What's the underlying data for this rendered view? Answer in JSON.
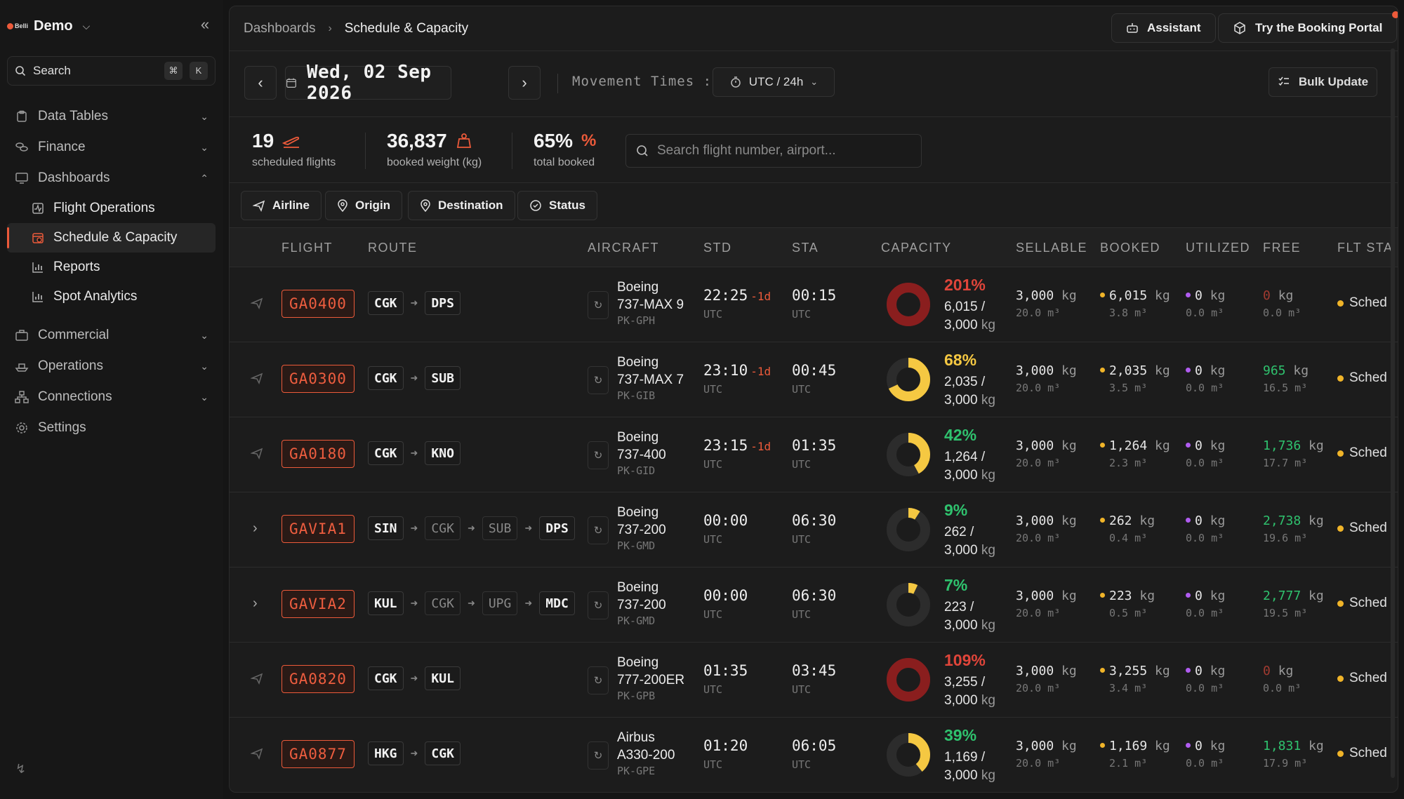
{
  "colors": {
    "accent": "#ec5a3a",
    "over": "#8a1e1e",
    "warn": "#f5c842",
    "ok": "#2fc26e",
    "grey": "#2c2c2c",
    "booked_dot": "#f0b429",
    "util_dot": "#b05cf0"
  },
  "sidebar": {
    "brand_logo": "Belli",
    "workspace": "Demo",
    "search_label": "Search",
    "kbd1": "⌘",
    "kbd2": "K",
    "items": [
      {
        "label": "Data Tables",
        "icon": "clipboard-icon"
      },
      {
        "label": "Finance",
        "icon": "coins-icon"
      },
      {
        "label": "Dashboards",
        "icon": "monitor-icon"
      },
      {
        "label": "Commercial",
        "icon": "briefcase-icon"
      },
      {
        "label": "Operations",
        "icon": "ship-icon"
      },
      {
        "label": "Connections",
        "icon": "network-icon"
      },
      {
        "label": "Settings",
        "icon": "gear-icon"
      }
    ],
    "dashboard_subitems": [
      {
        "label": "Flight Operations",
        "icon": "activity-icon"
      },
      {
        "label": "Schedule & Capacity",
        "icon": "calendar-clock-icon"
      },
      {
        "label": "Reports",
        "icon": "bar-chart-icon"
      },
      {
        "label": "Spot Analytics",
        "icon": "bar-chart-icon"
      }
    ]
  },
  "header": {
    "crumb_parent": "Dashboards",
    "crumb_current": "Schedule & Capacity",
    "assistant": "Assistant",
    "portal": "Try the Booking Portal"
  },
  "datebar": {
    "date": "Wed, 02 Sep 2026",
    "movement_label": "Movement Times :",
    "timezone": "UTC / 24h",
    "bulk": "Bulk Update"
  },
  "stats": [
    {
      "value": "19",
      "caption": "scheduled flights",
      "icon": "plane-departure-icon"
    },
    {
      "value": "36,837",
      "caption": "booked weight (kg)",
      "icon": "weight-icon"
    },
    {
      "value": "65%",
      "caption": "total booked",
      "icon": "percent-icon"
    }
  ],
  "flight_search_placeholder": "Search flight number, airport...",
  "filters": [
    "Airline",
    "Origin",
    "Destination",
    "Status"
  ],
  "columns": [
    "FLIGHT",
    "ROUTE",
    "AIRCRAFT",
    "STD",
    "STA",
    "CAPACITY",
    "SELLABLE",
    "BOOKED",
    "UTILIZED",
    "FREE",
    "FLT STA"
  ],
  "flights": [
    {
      "flight": "GA0400",
      "expandable": false,
      "route": [
        "CGK",
        "DPS"
      ],
      "ac_make": "Boeing",
      "ac_model": "737-MAX 9",
      "reg": "PK-GPH",
      "std": "22:25",
      "std_day": "-1d",
      "sta": "00:15",
      "tz": "UTC",
      "pct": "201%",
      "pct_value": 201,
      "cap_line1": "6,015 /",
      "cap_line2": "3,000",
      "unit": "kg",
      "sellable": "3,000",
      "sellable_m3": "20.0 m³",
      "booked": "6,015",
      "booked_m3": "3.8 m³",
      "utilized": "0",
      "utilized_m3": "0.0 m³",
      "free": "0",
      "free_m3": "0.0 m³",
      "status": "Sched"
    },
    {
      "flight": "GA0300",
      "expandable": false,
      "route": [
        "CGK",
        "SUB"
      ],
      "ac_make": "Boeing",
      "ac_model": "737-MAX 7",
      "reg": "PK-GIB",
      "std": "23:10",
      "std_day": "-1d",
      "sta": "00:45",
      "tz": "UTC",
      "pct": "68%",
      "pct_value": 68,
      "cap_line1": "2,035 /",
      "cap_line2": "3,000",
      "unit": "kg",
      "sellable": "3,000",
      "sellable_m3": "20.0 m³",
      "booked": "2,035",
      "booked_m3": "3.5 m³",
      "utilized": "0",
      "utilized_m3": "0.0 m³",
      "free": "965",
      "free_m3": "16.5 m³",
      "status": "Sched"
    },
    {
      "flight": "GA0180",
      "expandable": false,
      "route": [
        "CGK",
        "KNO"
      ],
      "ac_make": "Boeing",
      "ac_model": "737-400",
      "reg": "PK-GID",
      "std": "23:15",
      "std_day": "-1d",
      "sta": "01:35",
      "tz": "UTC",
      "pct": "42%",
      "pct_value": 42,
      "cap_line1": "1,264 /",
      "cap_line2": "3,000",
      "unit": "kg",
      "sellable": "3,000",
      "sellable_m3": "20.0 m³",
      "booked": "1,264",
      "booked_m3": "2.3 m³",
      "utilized": "0",
      "utilized_m3": "0.0 m³",
      "free": "1,736",
      "free_m3": "17.7 m³",
      "status": "Sched"
    },
    {
      "flight": "GAVIA1",
      "expandable": true,
      "route": [
        "SIN",
        "CGK",
        "SUB",
        "DPS"
      ],
      "ac_make": "Boeing",
      "ac_model": "737-200",
      "reg": "PK-GMD",
      "std": "00:00",
      "std_day": "",
      "sta": "06:30",
      "tz": "UTC",
      "pct": "9%",
      "pct_value": 9,
      "cap_line1": "262 /",
      "cap_line2": "3,000",
      "unit": "kg",
      "sellable": "3,000",
      "sellable_m3": "20.0 m³",
      "booked": "262",
      "booked_m3": "0.4 m³",
      "utilized": "0",
      "utilized_m3": "0.0 m³",
      "free": "2,738",
      "free_m3": "19.6 m³",
      "status": "Sched"
    },
    {
      "flight": "GAVIA2",
      "expandable": true,
      "route": [
        "KUL",
        "CGK",
        "UPG",
        "MDC"
      ],
      "ac_make": "Boeing",
      "ac_model": "737-200",
      "reg": "PK-GMD",
      "std": "00:00",
      "std_day": "",
      "sta": "06:30",
      "tz": "UTC",
      "pct": "7%",
      "pct_value": 7,
      "cap_line1": "223 /",
      "cap_line2": "3,000",
      "unit": "kg",
      "sellable": "3,000",
      "sellable_m3": "20.0 m³",
      "booked": "223",
      "booked_m3": "0.5 m³",
      "utilized": "0",
      "utilized_m3": "0.0 m³",
      "free": "2,777",
      "free_m3": "19.5 m³",
      "status": "Sched"
    },
    {
      "flight": "GA0820",
      "expandable": false,
      "route": [
        "CGK",
        "KUL"
      ],
      "ac_make": "Boeing",
      "ac_model": "777-200ER",
      "reg": "PK-GPB",
      "std": "01:35",
      "std_day": "",
      "sta": "03:45",
      "tz": "UTC",
      "pct": "109%",
      "pct_value": 109,
      "cap_line1": "3,255 /",
      "cap_line2": "3,000",
      "unit": "kg",
      "sellable": "3,000",
      "sellable_m3": "20.0 m³",
      "booked": "3,255",
      "booked_m3": "3.4 m³",
      "utilized": "0",
      "utilized_m3": "0.0 m³",
      "free": "0",
      "free_m3": "0.0 m³",
      "status": "Sched"
    },
    {
      "flight": "GA0877",
      "expandable": false,
      "route": [
        "HKG",
        "CGK"
      ],
      "ac_make": "Airbus",
      "ac_model": "A330-200",
      "reg": "PK-GPE",
      "std": "01:20",
      "std_day": "",
      "sta": "06:05",
      "tz": "UTC",
      "pct": "39%",
      "pct_value": 39,
      "cap_line1": "1,169 /",
      "cap_line2": "3,000",
      "unit": "kg",
      "sellable": "3,000",
      "sellable_m3": "20.0 m³",
      "booked": "1,169",
      "booked_m3": "2.1 m³",
      "utilized": "0",
      "utilized_m3": "0.0 m³",
      "free": "1,831",
      "free_m3": "17.9 m³",
      "status": "Sched"
    }
  ]
}
